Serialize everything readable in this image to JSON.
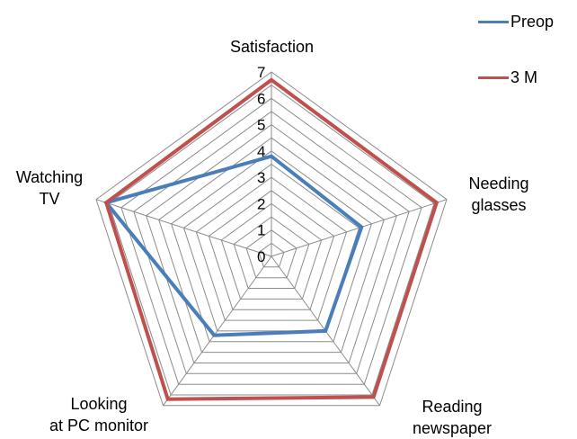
{
  "chart_data": {
    "type": "radar",
    "axes": [
      "Satisfaction",
      "Needing\nglasses",
      "Reading\nnewspaper",
      "Looking\nat PC monitor",
      "Watching\nTV"
    ],
    "range": [
      0,
      7
    ],
    "ticks": [
      "0",
      "1",
      "2",
      "3",
      "4",
      "5",
      "6",
      "7"
    ],
    "grid": true,
    "legend_position": "top-right",
    "series": [
      {
        "name": "Preop",
        "color": "#4a7ebb",
        "values": [
          3.8,
          3.6,
          3.5,
          3.7,
          6.6
        ]
      },
      {
        "name": "3 M",
        "color": "#c0504d",
        "values": [
          6.7,
          6.6,
          6.6,
          6.7,
          6.6
        ]
      }
    ]
  }
}
